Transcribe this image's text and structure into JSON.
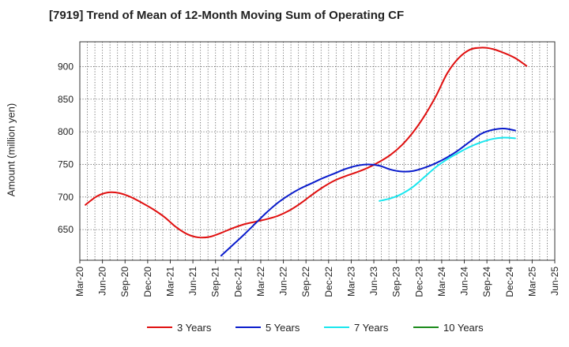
{
  "chart_data": {
    "type": "line",
    "title": "[7919]  Trend of Mean of 12-Month Moving Sum of Operating CF",
    "xlabel": "",
    "ylabel": "Amount (million yen)",
    "ylim": [
      603,
      938
    ],
    "yticks": [
      650,
      700,
      750,
      800,
      850,
      900
    ],
    "x_categories": [
      "Mar-20",
      "Jun-20",
      "Sep-20",
      "Dec-20",
      "Mar-21",
      "Jun-21",
      "Sep-21",
      "Dec-21",
      "Mar-22",
      "Jun-22",
      "Sep-22",
      "Dec-22",
      "Mar-23",
      "Jun-23",
      "Sep-23",
      "Dec-23",
      "Mar-24",
      "Jun-24",
      "Sep-24",
      "Dec-24",
      "Mar-25",
      "Jun-25"
    ],
    "grid": true,
    "legend_position": "bottom",
    "series": [
      {
        "name": "3 Years",
        "color": "#e01010",
        "points": [
          [
            0,
            688
          ],
          [
            1,
            701
          ],
          [
            2,
            707
          ],
          [
            3,
            706
          ],
          [
            4,
            700
          ],
          [
            5,
            691
          ],
          [
            6,
            681
          ],
          [
            7,
            669
          ],
          [
            8,
            654
          ],
          [
            9,
            643
          ],
          [
            10,
            638
          ],
          [
            11,
            639
          ],
          [
            12,
            645
          ],
          [
            13,
            652
          ],
          [
            14,
            658
          ],
          [
            15,
            662
          ],
          [
            16,
            666
          ],
          [
            17,
            671
          ],
          [
            18,
            679
          ],
          [
            19,
            690
          ],
          [
            20,
            703
          ],
          [
            21,
            715
          ],
          [
            22,
            725
          ],
          [
            23,
            732
          ],
          [
            24,
            738
          ],
          [
            25,
            745
          ],
          [
            26,
            754
          ],
          [
            27,
            765
          ],
          [
            28,
            780
          ],
          [
            29,
            800
          ],
          [
            30,
            825
          ],
          [
            31,
            855
          ],
          [
            32,
            890
          ],
          [
            33,
            913
          ],
          [
            34,
            926
          ],
          [
            35,
            929
          ],
          [
            36,
            927
          ],
          [
            37,
            921
          ],
          [
            38,
            913
          ],
          [
            39,
            901
          ]
        ]
      },
      {
        "name": "5 Years",
        "color": "#0a1ccc",
        "points": [
          [
            12,
            610
          ],
          [
            13,
            626
          ],
          [
            14,
            642
          ],
          [
            15,
            659
          ],
          [
            16,
            676
          ],
          [
            17,
            691
          ],
          [
            18,
            703
          ],
          [
            19,
            713
          ],
          [
            20,
            721
          ],
          [
            21,
            729
          ],
          [
            22,
            736
          ],
          [
            23,
            743
          ],
          [
            24,
            748
          ],
          [
            25,
            750
          ],
          [
            26,
            748
          ],
          [
            27,
            742
          ],
          [
            28,
            739
          ],
          [
            29,
            740
          ],
          [
            30,
            745
          ],
          [
            31,
            752
          ],
          [
            32,
            761
          ],
          [
            33,
            772
          ],
          [
            34,
            785
          ],
          [
            35,
            797
          ],
          [
            36,
            803
          ],
          [
            37,
            805
          ],
          [
            38,
            802
          ]
        ]
      },
      {
        "name": "7 Years",
        "color": "#19e6ee",
        "points": [
          [
            26,
            694
          ],
          [
            27,
            698
          ],
          [
            28,
            705
          ],
          [
            29,
            716
          ],
          [
            30,
            731
          ],
          [
            31,
            746
          ],
          [
            32,
            758
          ],
          [
            33,
            768
          ],
          [
            34,
            777
          ],
          [
            35,
            784
          ],
          [
            36,
            789
          ],
          [
            37,
            791
          ],
          [
            38,
            790
          ]
        ]
      },
      {
        "name": "10 Years",
        "color": "#1a8a1a",
        "points": []
      }
    ]
  }
}
